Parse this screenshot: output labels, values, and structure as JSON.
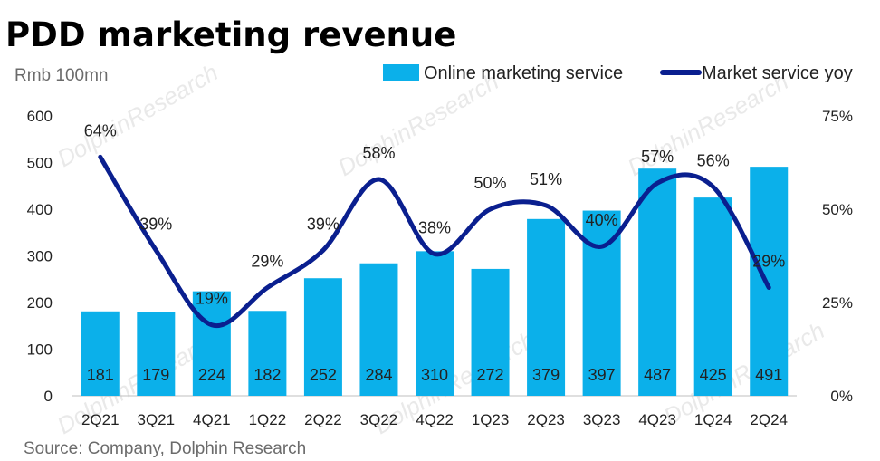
{
  "title": "PDD marketing revenue",
  "unit_label": "Rmb 100mn",
  "source": "Source: Company, Dolphin Research",
  "watermark": "DolphinResearch",
  "colors": {
    "bar": "#0bb0ea",
    "line": "#0a1f8f",
    "text": "#222222",
    "muted": "#6b6b6b"
  },
  "chart_data": {
    "type": "bar",
    "categories": [
      "2Q21",
      "3Q21",
      "4Q21",
      "1Q22",
      "2Q22",
      "3Q22",
      "4Q22",
      "1Q23",
      "2Q23",
      "3Q23",
      "4Q23",
      "1Q24",
      "2Q24"
    ],
    "series": [
      {
        "name": "Online marketing service",
        "type": "bar",
        "axis": "left",
        "values": [
          181,
          179,
          224,
          182,
          252,
          284,
          310,
          272,
          379,
          397,
          487,
          425,
          491
        ],
        "labels": [
          "181",
          "179",
          "224",
          "182",
          "252",
          "284",
          "310",
          "272",
          "379",
          "397",
          "487",
          "425",
          "491"
        ]
      },
      {
        "name": "Market service yoy",
        "type": "line",
        "axis": "right",
        "values": [
          64,
          39,
          19,
          29,
          39,
          58,
          38,
          50,
          51,
          40,
          57,
          56,
          29
        ],
        "labels": [
          "64%",
          "39%",
          "19%",
          "29%",
          "39%",
          "58%",
          "38%",
          "50%",
          "51%",
          "40%",
          "57%",
          "56%",
          "29%"
        ]
      }
    ],
    "left_axis": {
      "min": 0,
      "max": 600,
      "ticks": [
        "0",
        "100",
        "200",
        "300",
        "400",
        "500",
        "600"
      ]
    },
    "right_axis": {
      "min": 0,
      "max": 75,
      "ticks": [
        "0%",
        "25%",
        "50%",
        "75%"
      ]
    },
    "legend_position": "top-right",
    "grid": false
  }
}
